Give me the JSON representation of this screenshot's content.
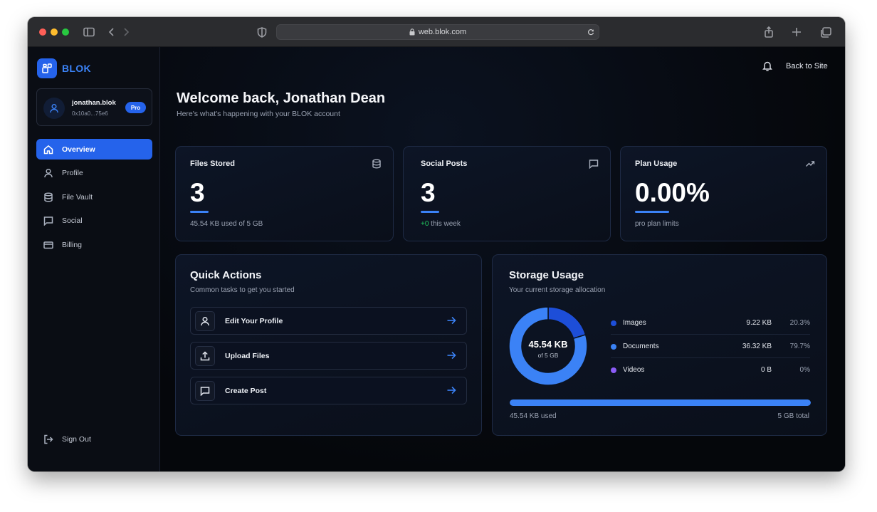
{
  "browser": {
    "url": "web.blok.com"
  },
  "brand": {
    "name": "BLOK"
  },
  "user": {
    "name": "jonathan.blok",
    "address": "0x10a0...75e6",
    "badge": "Pro"
  },
  "nav": {
    "items": [
      {
        "label": "Overview",
        "icon": "home-icon",
        "active": true
      },
      {
        "label": "Profile",
        "icon": "user-icon",
        "active": false
      },
      {
        "label": "File Vault",
        "icon": "database-icon",
        "active": false
      },
      {
        "label": "Social",
        "icon": "message-icon",
        "active": false
      },
      {
        "label": "Billing",
        "icon": "credit-card-icon",
        "active": false
      }
    ],
    "sign_out": "Sign Out"
  },
  "topbar": {
    "back_to_site": "Back to Site"
  },
  "header": {
    "title": "Welcome back, Jonathan Dean",
    "subtitle": "Here's what's happening with your BLOK account"
  },
  "stats": [
    {
      "title": "Files Stored",
      "value": "3",
      "sub": "45.54 KB used of 5 GB",
      "icon": "database-icon"
    },
    {
      "title": "Social Posts",
      "value": "3",
      "sub_highlight": "+0",
      "sub": " this week",
      "icon": "message-icon"
    },
    {
      "title": "Plan Usage",
      "value": "0.00%",
      "sub": "pro plan limits",
      "icon": "trending-up-icon"
    }
  ],
  "quick_actions": {
    "title": "Quick Actions",
    "subtitle": "Common tasks to get you started",
    "items": [
      {
        "label": "Edit Your Profile",
        "icon": "user-icon"
      },
      {
        "label": "Upload Files",
        "icon": "upload-icon"
      },
      {
        "label": "Create Post",
        "icon": "message-icon"
      }
    ]
  },
  "storage": {
    "title": "Storage Usage",
    "subtitle": "Your current storage allocation",
    "center_value": "45.54 KB",
    "center_sub": "of 5 GB",
    "used_label": "45.54 KB used",
    "total_label": "5 GB total",
    "usage_fraction": 1.0,
    "breakdown": [
      {
        "name": "Images",
        "size": "9.22 KB",
        "percent": "20.3%",
        "fraction": 0.203,
        "color": "#1d4ed8"
      },
      {
        "name": "Documents",
        "size": "36.32 KB",
        "percent": "79.7%",
        "fraction": 0.797,
        "color": "#3b82f6"
      },
      {
        "name": "Videos",
        "size": "0 B",
        "percent": "0%",
        "fraction": 0.0,
        "color": "#8b5cf6"
      }
    ]
  }
}
